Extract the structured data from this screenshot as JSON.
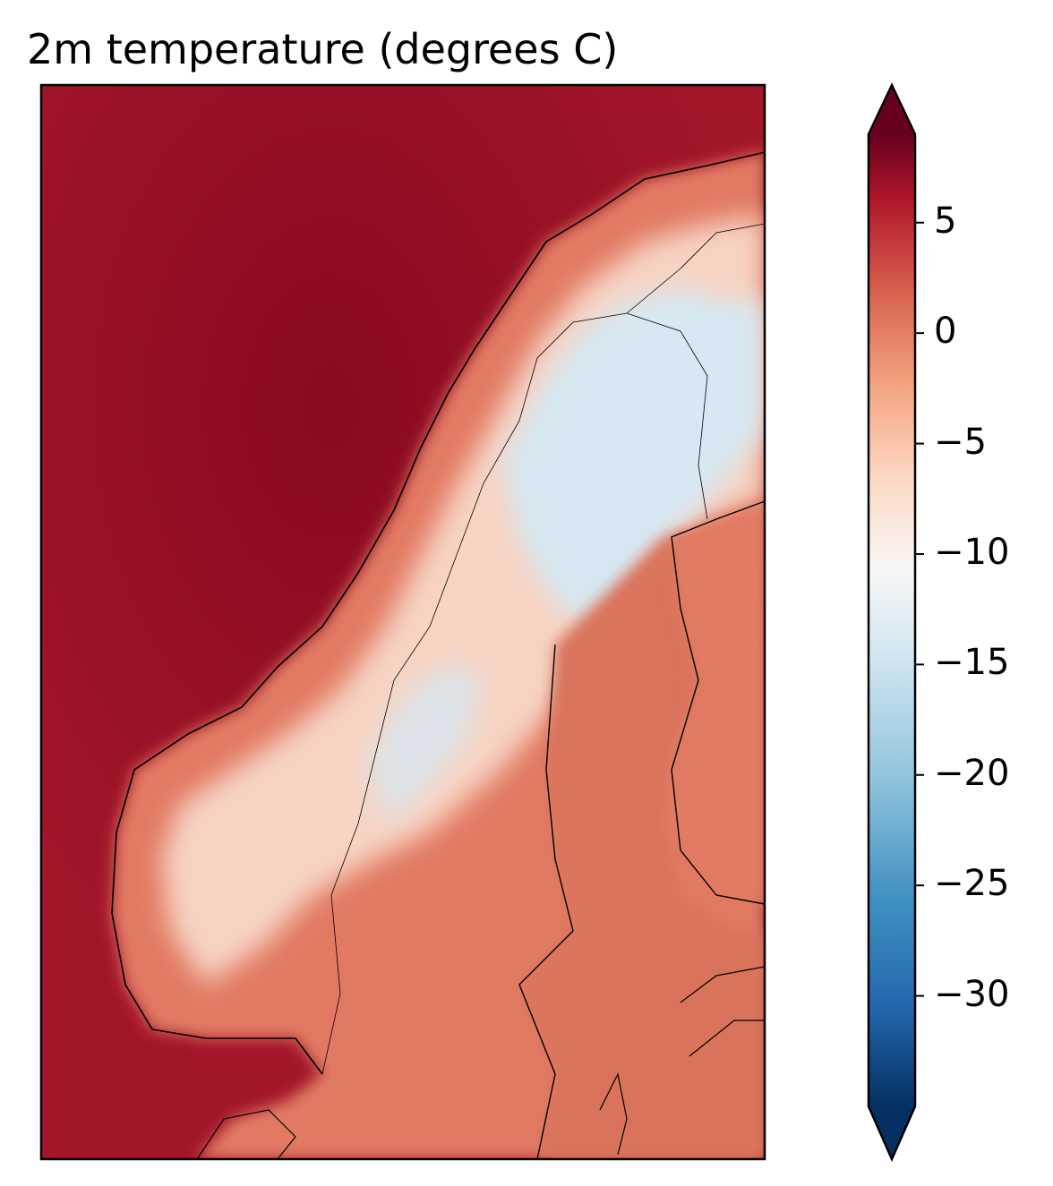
{
  "figure": {
    "title": "2m temperature (degrees C)"
  },
  "colorbar": {
    "colormap": "RdBu_r",
    "vmin": -35,
    "vmax": 9,
    "extend": "both",
    "ticks": [
      {
        "value": 5,
        "label": "5"
      },
      {
        "value": 0,
        "label": "0"
      },
      {
        "value": -5,
        "label": "−5"
      },
      {
        "value": -10,
        "label": "−10"
      },
      {
        "value": -15,
        "label": "−15"
      },
      {
        "value": -20,
        "label": "−20"
      },
      {
        "value": -25,
        "label": "−25"
      },
      {
        "value": -30,
        "label": "−30"
      }
    ],
    "colors": {
      "max": "#67001f",
      "dark_red": "#b2182b",
      "red": "#d6604d",
      "salmon": "#f4a582",
      "pale": "#fddbc7",
      "white": "#f7f7f7",
      "pale_blue": "#d1e5f0",
      "light_blue": "#92c5de",
      "blue": "#4393c3",
      "mid_blue": "#2166ac",
      "min": "#053061"
    }
  },
  "map": {
    "region": "Scandinavia",
    "colors": {
      "ocean": "#a3162a",
      "ocean_deep": "#82071e",
      "coast_land": "#e27a63",
      "high_land": "#f7d3c2",
      "cold_land": "#d7e8f2",
      "baltic": "#d9735c",
      "coastline": "#000000"
    }
  }
}
